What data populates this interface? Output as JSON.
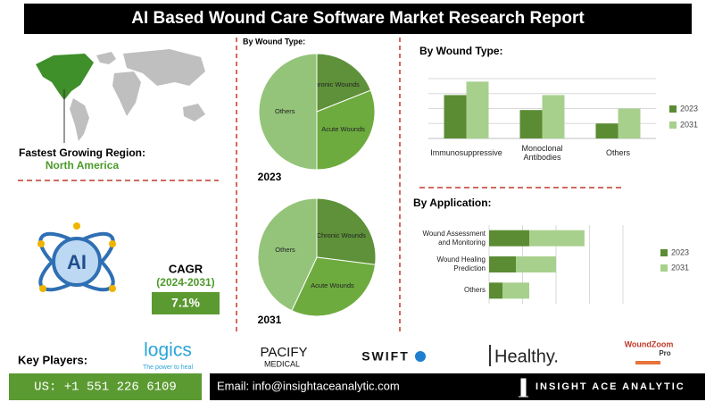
{
  "header": {
    "title": "AI Based Wound Care Software Market Research Report"
  },
  "region": {
    "label": "Fastest Growing Region:",
    "value": "North America"
  },
  "ai_icon": {
    "label": "AI"
  },
  "cagr": {
    "label": "CAGR",
    "period": "(2024-2031)",
    "value": "7.1%"
  },
  "key_players": {
    "label": "Key Players:",
    "companies": [
      {
        "name": "logics",
        "tagline": "The power to heal"
      },
      {
        "name": "PACIFY",
        "tagline": "MEDICAL"
      },
      {
        "name": "SWIFT"
      },
      {
        "name": "Healthy."
      },
      {
        "name": "WoundZoom",
        "tagline": "Pro"
      }
    ]
  },
  "footer": {
    "phone": "US: +1 551 226 6109",
    "email": "Email: info@insightaceanalytic.com",
    "brand": "INSIGHT ACE ANALYTIC"
  },
  "chart_data": [
    {
      "type": "pie",
      "title": "By Wound Type:",
      "subtitle": "2023",
      "categories": [
        "Chronic Wounds",
        "Acute Wounds",
        "Others"
      ],
      "values": [
        19,
        31,
        50
      ],
      "colors": [
        "#5e9139",
        "#6eab3f",
        "#94c47a"
      ]
    },
    {
      "type": "pie",
      "subtitle": "2031",
      "categories": [
        "Chronic Wounds",
        "Acute Wounds",
        "Others"
      ],
      "values": [
        27,
        30,
        43
      ],
      "colors": [
        "#5e9139",
        "#6eab3f",
        "#94c47a"
      ]
    },
    {
      "type": "bar",
      "title": "By Wound Type:",
      "categories": [
        "Immunosuppressive",
        "Monoclonal Antibodies",
        "Others"
      ],
      "series": [
        {
          "name": "2023",
          "color": "#5b8c34",
          "values": [
            2.9,
            1.9,
            1.0
          ]
        },
        {
          "name": "2031",
          "color": "#a8d08d",
          "values": [
            3.8,
            2.9,
            2.0
          ]
        }
      ],
      "ylim": [
        0,
        4
      ],
      "grid": true,
      "legend": "right"
    },
    {
      "type": "barh",
      "title": "By Application:",
      "stacked": true,
      "categories": [
        "Wound Assessment and Monitoring",
        "Wound Healing Prediction",
        "Others"
      ],
      "series": [
        {
          "name": "2023",
          "color": "#5b8c34",
          "values": [
            1.2,
            0.8,
            0.4
          ]
        },
        {
          "name": "2031",
          "color": "#a8d08d",
          "values": [
            1.65,
            1.2,
            0.8
          ]
        }
      ],
      "xlim": [
        0,
        4
      ],
      "grid": true,
      "legend": "right"
    }
  ]
}
